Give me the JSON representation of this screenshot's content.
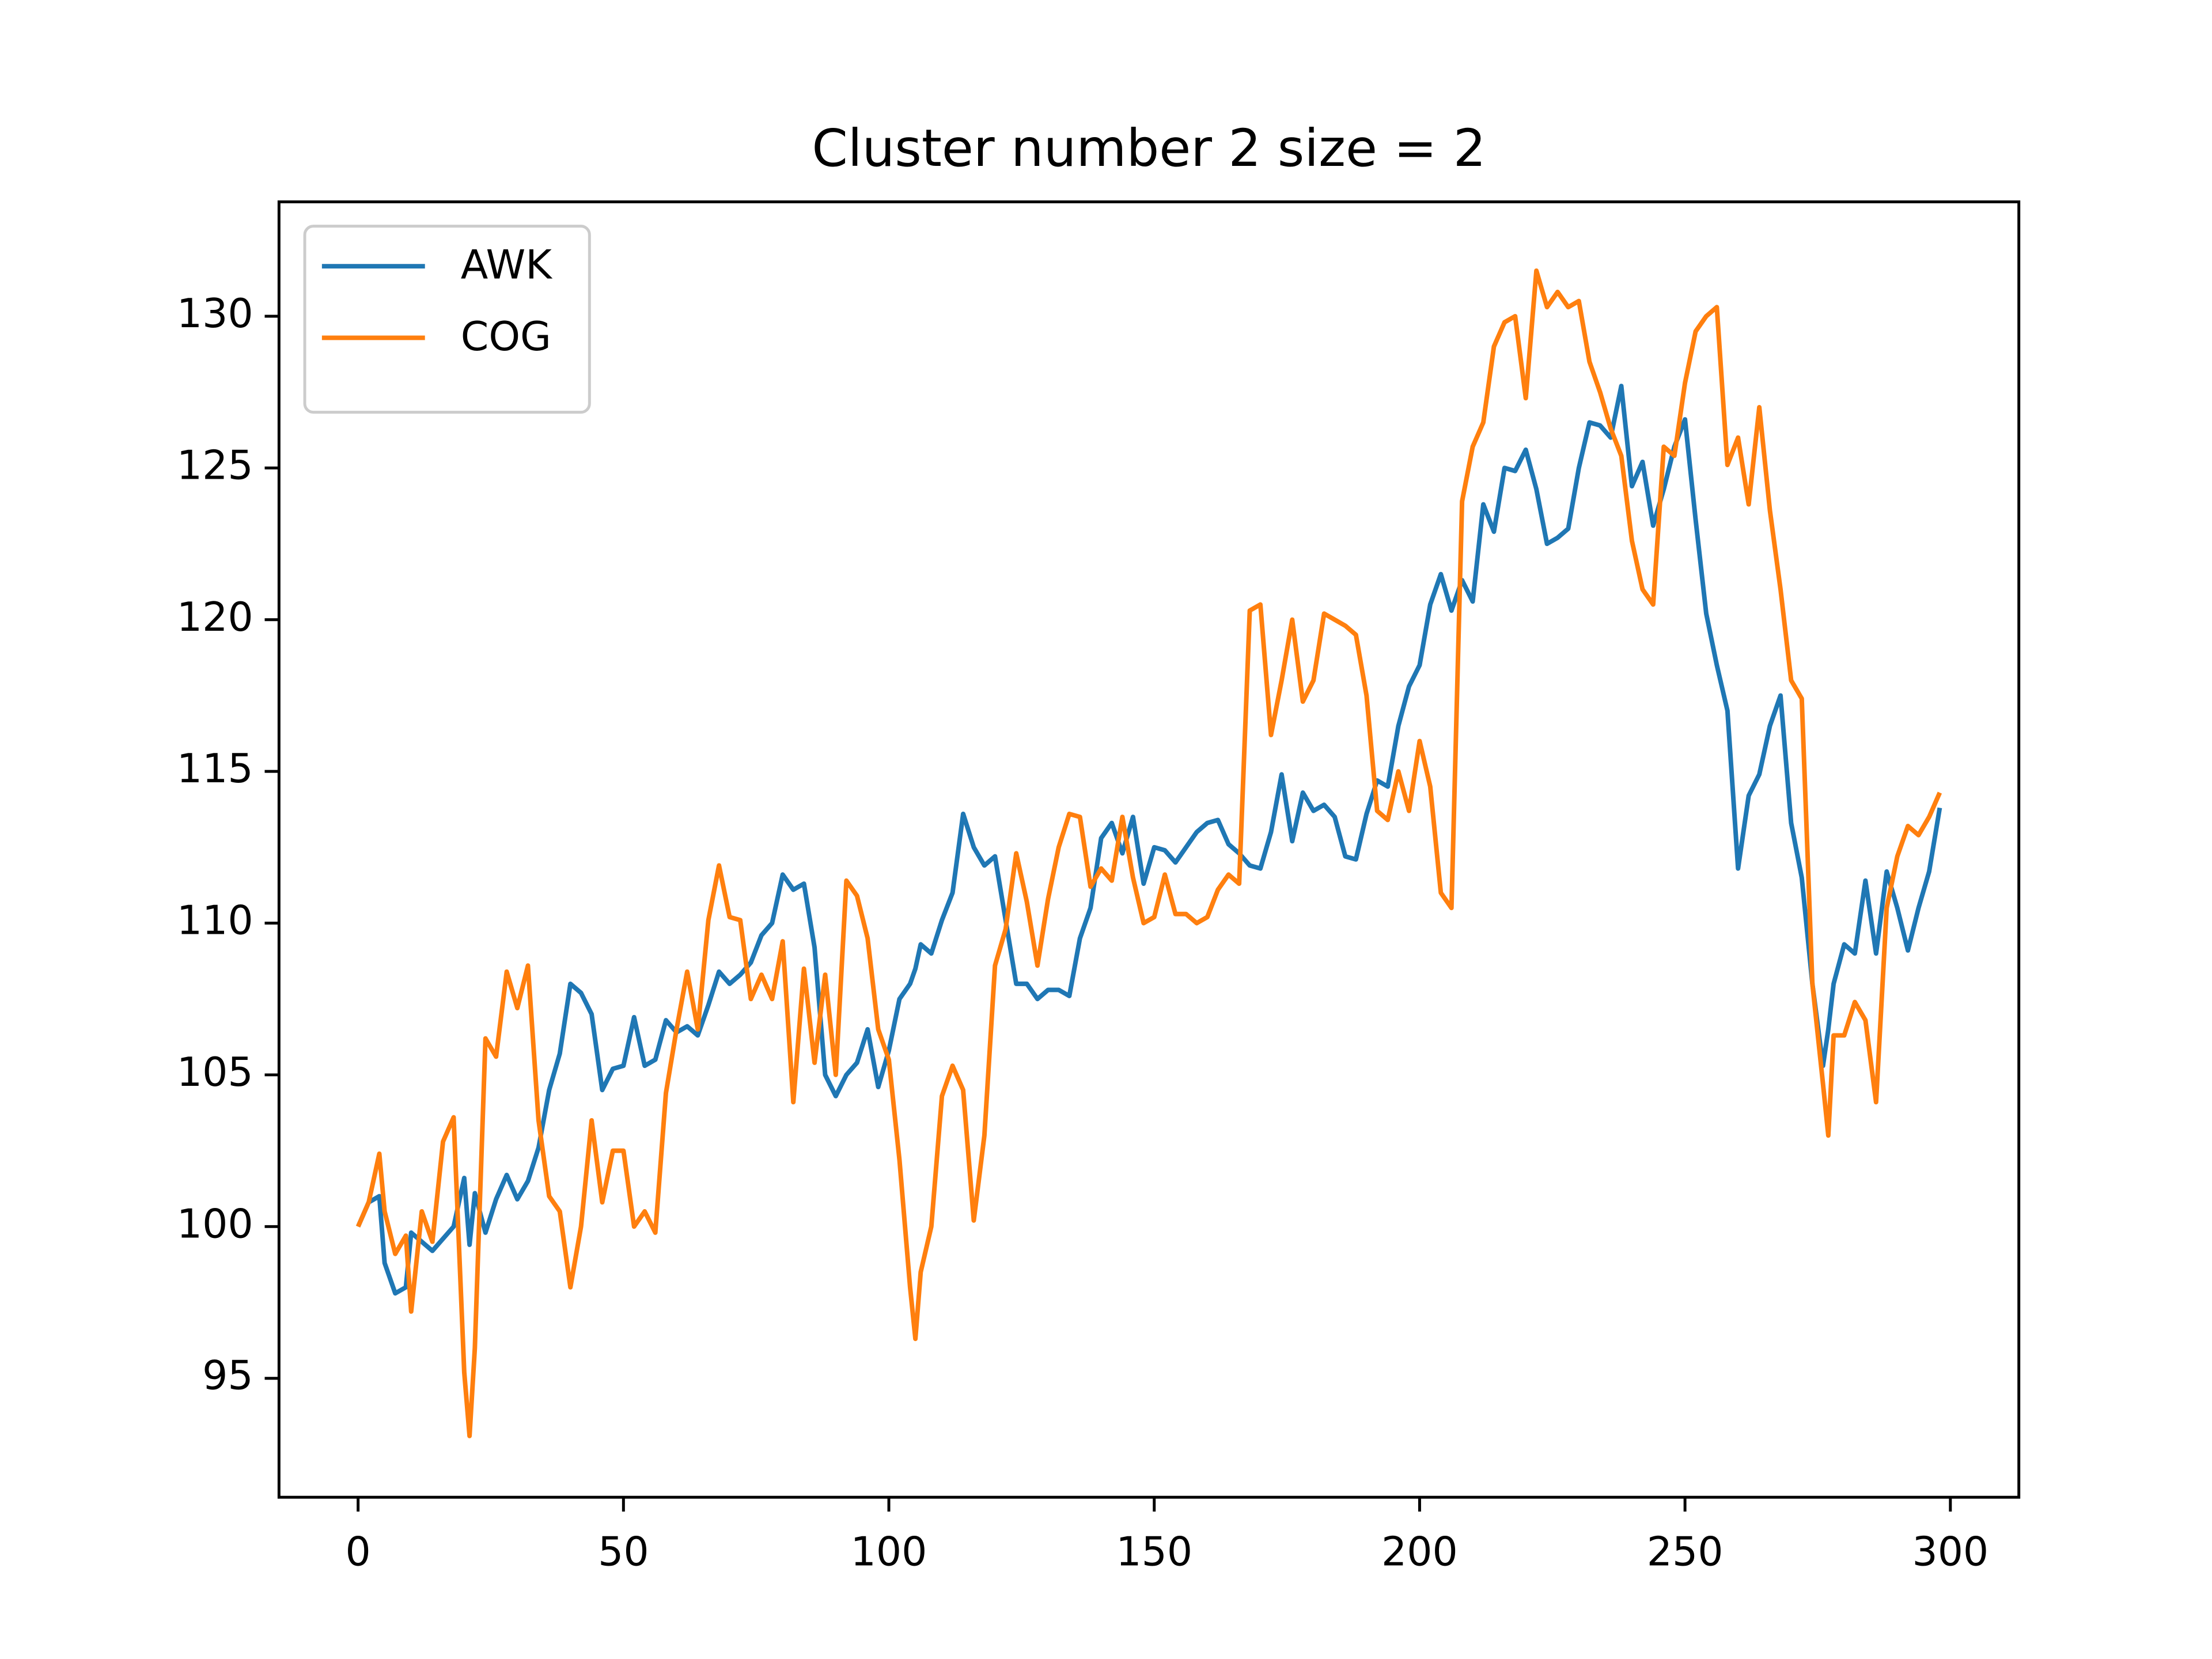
{
  "chart_data": {
    "type": "line",
    "title": "Cluster number 2 size = 2",
    "x": [
      0,
      2,
      4,
      5,
      7,
      9,
      10,
      12,
      14,
      16,
      18,
      20,
      21,
      22,
      24,
      26,
      28,
      30,
      32,
      34,
      36,
      38,
      40,
      42,
      44,
      46,
      48,
      50,
      52,
      54,
      56,
      58,
      60,
      62,
      64,
      66,
      68,
      70,
      72,
      74,
      76,
      78,
      80,
      82,
      84,
      86,
      88,
      90,
      92,
      94,
      96,
      98,
      100,
      102,
      104,
      105,
      106,
      108,
      110,
      112,
      114,
      116,
      118,
      120,
      122,
      124,
      126,
      128,
      130,
      132,
      134,
      136,
      138,
      140,
      142,
      144,
      146,
      148,
      150,
      152,
      154,
      156,
      158,
      160,
      162,
      164,
      166,
      168,
      170,
      172,
      174,
      176,
      178,
      180,
      182,
      184,
      186,
      188,
      190,
      192,
      194,
      196,
      198,
      200,
      202,
      204,
      206,
      208,
      210,
      212,
      214,
      216,
      218,
      220,
      222,
      224,
      226,
      228,
      230,
      232,
      234,
      236,
      238,
      240,
      242,
      244,
      246,
      248,
      250,
      252,
      254,
      256,
      258,
      260,
      262,
      264,
      266,
      268,
      270,
      272,
      274,
      276,
      277,
      278,
      280,
      282,
      284,
      286,
      288,
      290,
      292,
      294,
      296,
      298
    ],
    "series": [
      {
        "name": "AWK",
        "color": "#1f77b4",
        "values": [
          100,
          100.8,
          101,
          98.8,
          97.8,
          98,
          99.8,
          99.5,
          99.2,
          99.6,
          100,
          101.6,
          99.4,
          101.1,
          99.8,
          100.9,
          101.7,
          100.9,
          101.5,
          102.6,
          104.5,
          105.7,
          108,
          107.7,
          107,
          104.5,
          105.2,
          105.3,
          106.9,
          105.3,
          105.5,
          106.8,
          106.4,
          106.6,
          106.3,
          107.3,
          108.4,
          108,
          108.3,
          108.7,
          109.6,
          110,
          111.6,
          111.1,
          111.3,
          109.2,
          105,
          104.3,
          105,
          105.4,
          106.5,
          104.6,
          105.8,
          107.5,
          108,
          108.5,
          109.3,
          109,
          110.1,
          111,
          113.6,
          112.5,
          111.9,
          112.2,
          110.1,
          108,
          108,
          107.5,
          107.8,
          107.8,
          107.6,
          109.5,
          110.5,
          112.8,
          113.3,
          112.3,
          113.5,
          111.3,
          112.5,
          112.4,
          112,
          112.5,
          113,
          113.3,
          113.4,
          112.6,
          112.3,
          111.9,
          111.8,
          113,
          114.9,
          112.7,
          114.3,
          113.7,
          113.9,
          113.5,
          112.2,
          112.1,
          113.6,
          114.7,
          114.5,
          116.5,
          117.8,
          118.5,
          120.5,
          121.5,
          120.3,
          121.3,
          120.6,
          123.8,
          122.9,
          125,
          124.9,
          125.6,
          124.3,
          122.5,
          122.7,
          123,
          125,
          126.5,
          126.4,
          126,
          127.7,
          124.4,
          125.2,
          123.1,
          124.3,
          125.7,
          126.6,
          123.3,
          120.2,
          118.5,
          117,
          111.8,
          114.2,
          114.9,
          116.5,
          117.5,
          113.3,
          111.5,
          108,
          105.3,
          106.5,
          108,
          109.3,
          109,
          111.4,
          109,
          111.7,
          110.5,
          109.1,
          110.5,
          111.7,
          113.8
        ]
      },
      {
        "name": "COG",
        "color": "#ff7f0e",
        "values": [
          100,
          100.8,
          102.4,
          100.5,
          99.1,
          99.7,
          97.2,
          100.5,
          99.5,
          102.8,
          103.6,
          95.2,
          93.1,
          96,
          106.2,
          105.6,
          108.4,
          107.2,
          108.6,
          103.5,
          101,
          100.5,
          98,
          100,
          103.5,
          100.8,
          102.5,
          102.5,
          100,
          100.5,
          99.8,
          104.4,
          106.5,
          108.4,
          106.5,
          110.1,
          111.9,
          110.2,
          110.1,
          107.5,
          108.3,
          107.5,
          109.4,
          104.1,
          108.5,
          105.4,
          108.3,
          105,
          111.4,
          110.9,
          109.5,
          106.5,
          105.5,
          102.2,
          98,
          96.3,
          98.5,
          100,
          104.3,
          105.3,
          104.5,
          100.2,
          103,
          108.6,
          109.8,
          112.3,
          110.7,
          108.6,
          110.8,
          112.5,
          113.6,
          113.5,
          111.2,
          111.8,
          111.4,
          113.5,
          111.5,
          110,
          110.2,
          111.6,
          110.3,
          110.3,
          110,
          110.2,
          111.1,
          111.6,
          111.3,
          120.3,
          120.5,
          116.2,
          118,
          120,
          117.3,
          118,
          120.2,
          120,
          119.8,
          119.5,
          117.5,
          113.7,
          113.4,
          115,
          113.7,
          116,
          114.5,
          111,
          110.5,
          123.9,
          125.7,
          126.5,
          129,
          129.8,
          130,
          127.3,
          131.5,
          130.3,
          130.8,
          130.3,
          130.5,
          128.5,
          127.5,
          126.3,
          125.4,
          122.6,
          121,
          120.5,
          125.7,
          125.4,
          127.8,
          129.5,
          130,
          130.3,
          125.1,
          126,
          123.8,
          127,
          123.6,
          121,
          118,
          117.4,
          108,
          104.7,
          103,
          106.3,
          106.3,
          107.4,
          106.8,
          104.1,
          110.5,
          112.2,
          113.2,
          112.9,
          113.5,
          114.3
        ]
      }
    ],
    "xlim": [
      -14.9,
      312.9
    ],
    "ylim": [
      91.08,
      133.77
    ],
    "xticks": [
      0,
      50,
      100,
      150,
      200,
      250,
      300
    ],
    "yticks": [
      95,
      100,
      105,
      110,
      115,
      120,
      125,
      130
    ],
    "legend": "upper left"
  }
}
